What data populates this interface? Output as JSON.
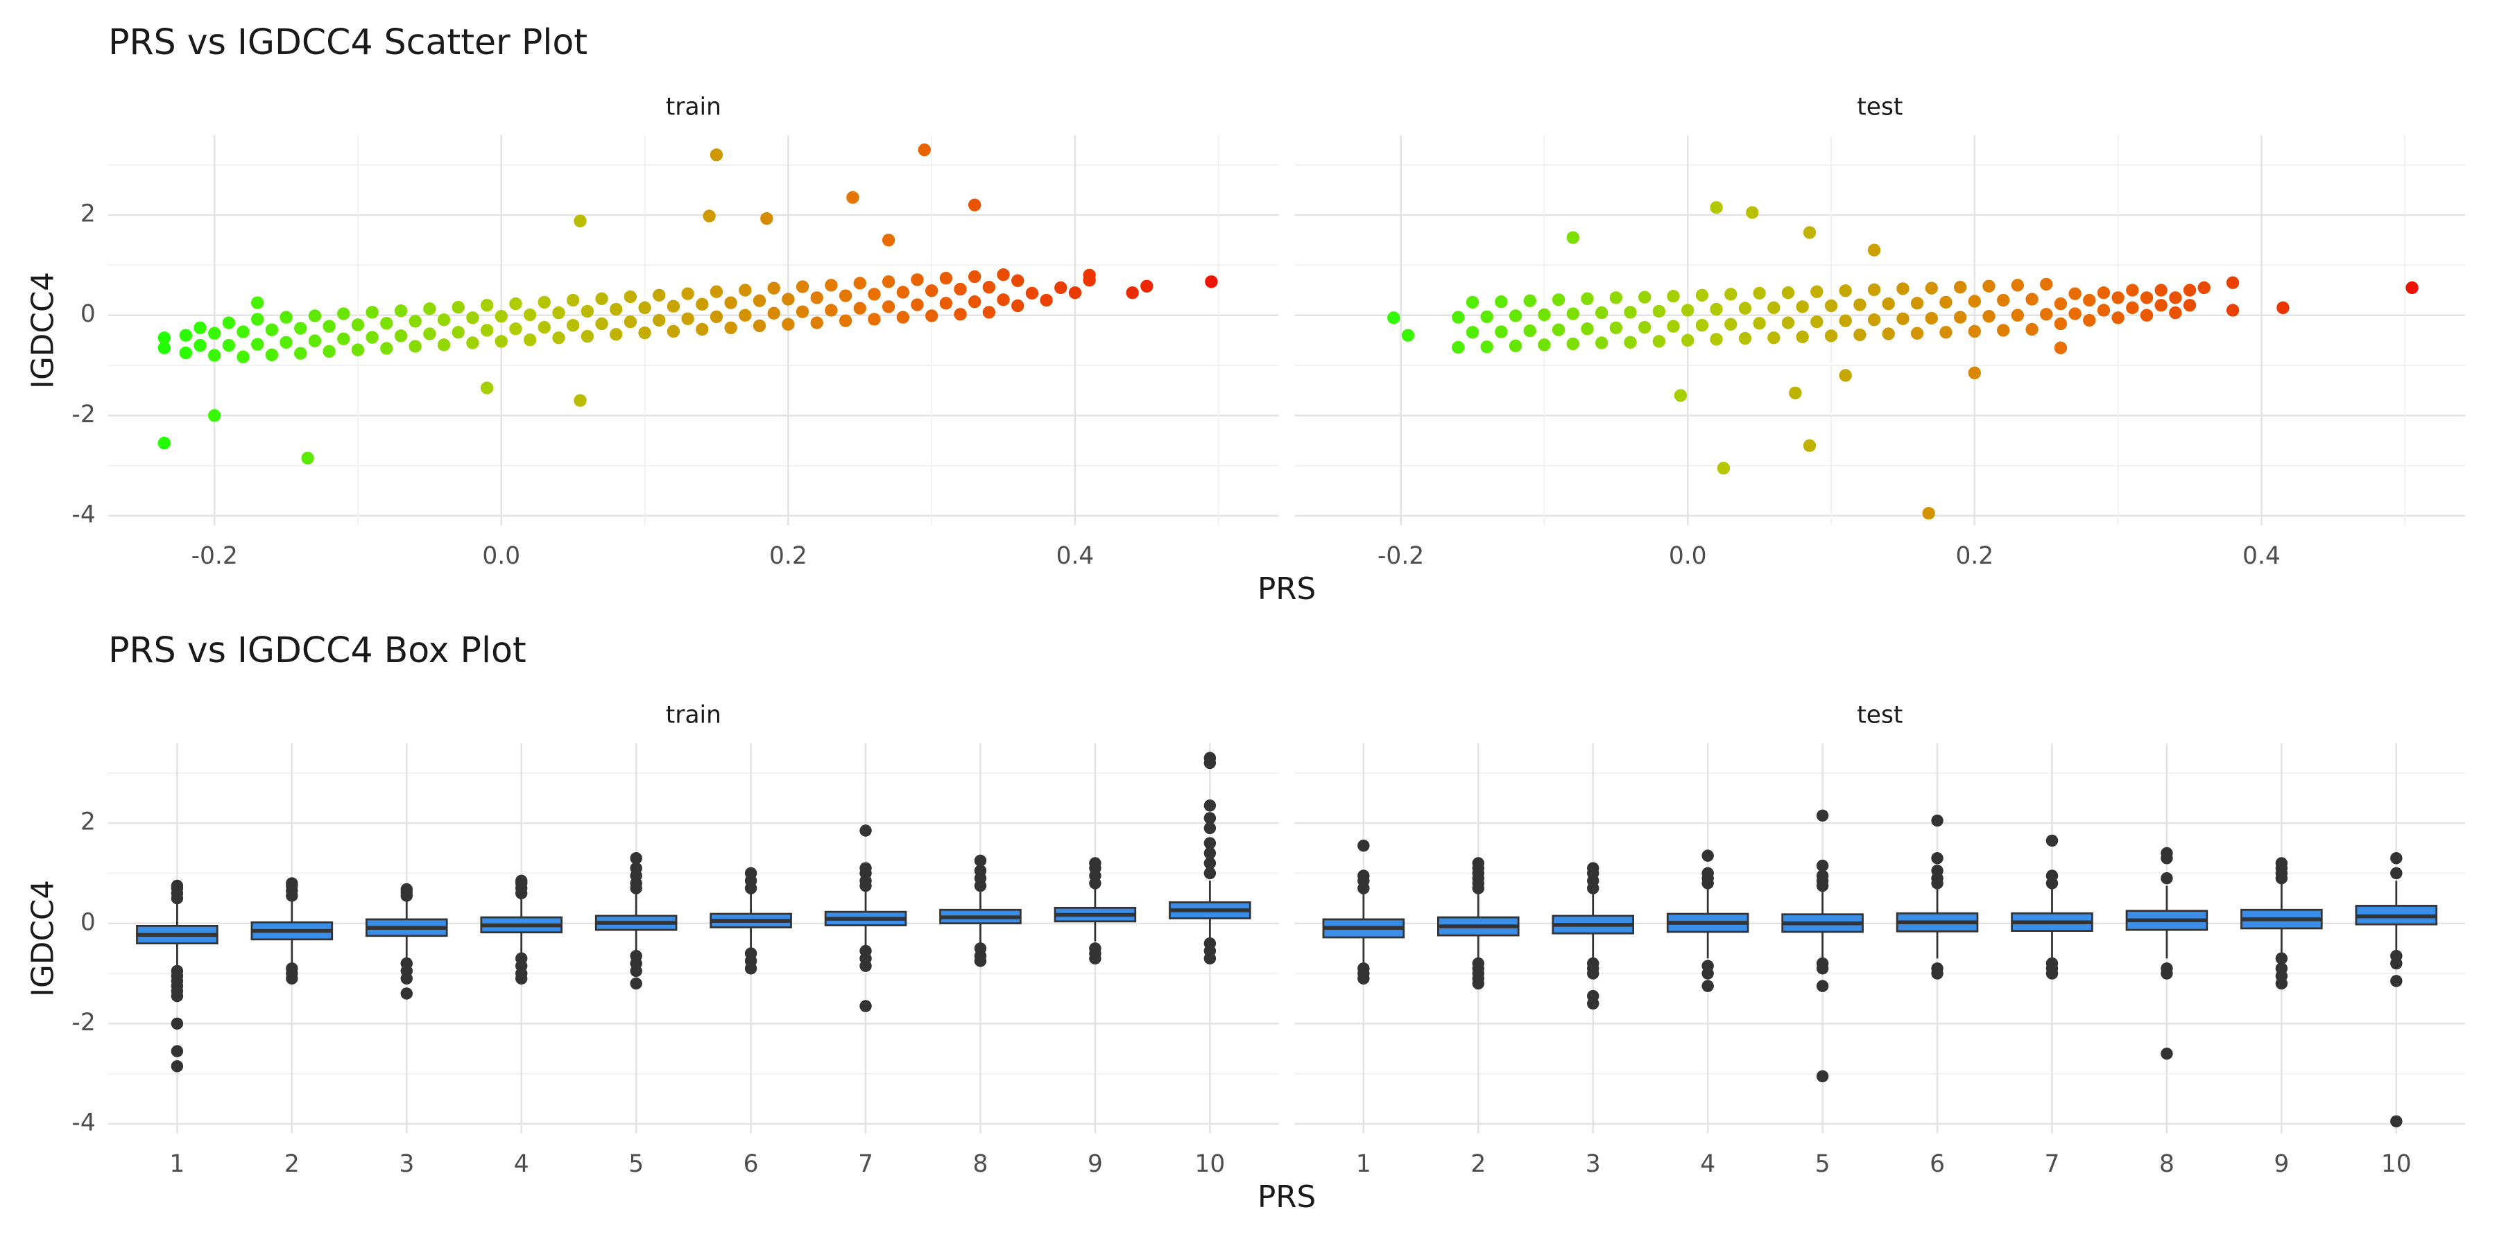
{
  "chart_data": [
    {
      "type": "scatter",
      "title": "PRS vs IGDCC4 Scatter Plot",
      "x_label": "PRS",
      "y_label": "IGDCC4",
      "xlim": [
        -0.274,
        0.542
      ],
      "xticks": [
        -0.2,
        {
          "value": 0,
          "label": "0.0"
        },
        0.2,
        0.4
      ],
      "xminor": [
        -0.1,
        0.1,
        0.3,
        0.5
      ],
      "ylim": [
        -4.19,
        3.59
      ],
      "yticks": [
        -4,
        -2,
        0,
        2
      ],
      "yminor": [
        -3,
        -1,
        1,
        3
      ],
      "grid": true,
      "color_gradient": [
        "#22ff00",
        "#b0cc00",
        "#e87000",
        "#ee1100"
      ],
      "panels": [
        {
          "name": "train",
          "x": [
            -0.22,
            -0.21,
            -0.22,
            -0.21,
            -0.2,
            -0.19,
            -0.2,
            -0.19,
            -0.18,
            -0.17,
            -0.18,
            -0.17,
            -0.16,
            -0.15,
            -0.16,
            -0.15,
            -0.14,
            -0.13,
            -0.14,
            -0.13,
            -0.12,
            -0.11,
            -0.12,
            -0.11,
            -0.1,
            -0.09,
            -0.1,
            -0.09,
            -0.08,
            -0.07,
            -0.08,
            -0.07,
            -0.06,
            -0.05,
            -0.06,
            -0.05,
            -0.04,
            -0.03,
            -0.04,
            -0.03,
            -0.02,
            -0.01,
            -0.02,
            -0.01,
            0,
            0.01,
            0,
            0.01,
            0.02,
            0.03,
            0.02,
            0.03,
            0.04,
            0.05,
            0.04,
            0.05,
            0.06,
            0.07,
            0.06,
            0.07,
            0.08,
            0.09,
            0.08,
            0.09,
            0.1,
            0.11,
            0.1,
            0.11,
            0.12,
            0.13,
            0.12,
            0.13,
            0.14,
            0.15,
            0.14,
            0.15,
            0.16,
            0.17,
            0.16,
            0.17,
            0.18,
            0.19,
            0.18,
            0.19,
            0.2,
            0.21,
            0.2,
            0.21,
            0.22,
            0.23,
            0.22,
            0.23,
            0.24,
            0.25,
            0.24,
            0.25,
            0.26,
            0.27,
            0.26,
            0.27,
            0.28,
            0.29,
            0.28,
            0.29,
            0.3,
            0.31,
            0.3,
            0.31,
            0.32,
            0.33,
            0.32,
            0.33,
            0.34,
            0.35,
            0.34,
            0.35,
            0.36,
            0.37,
            0.36,
            0.38,
            0.39,
            0.4,
            0.41,
            0.41,
            0.44,
            0.45,
            0.495,
            -0.235,
            -0.235,
            -0.235,
            -0.2,
            -0.135,
            0.15,
            0.295,
            0.33,
            0.245,
            0.145,
            0.185,
            0.055,
            0.055,
            -0.01,
            0.27,
            -0.17
          ],
          "y": [
            -0.75,
            -0.6,
            -0.4,
            -0.25,
            -0.8,
            -0.6,
            -0.36,
            -0.15,
            -0.83,
            -0.58,
            -0.33,
            -0.08,
            -0.79,
            -0.54,
            -0.29,
            -0.04,
            -0.76,
            -0.51,
            -0.26,
            -0.01,
            -0.72,
            -0.47,
            -0.22,
            0.03,
            -0.69,
            -0.44,
            -0.19,
            0.06,
            -0.66,
            -0.41,
            -0.16,
            0.09,
            -0.62,
            -0.37,
            -0.12,
            0.13,
            -0.59,
            -0.34,
            -0.09,
            0.16,
            -0.55,
            -0.3,
            -0.05,
            0.2,
            -0.52,
            -0.27,
            -0.02,
            0.23,
            -0.49,
            -0.24,
            0.01,
            0.26,
            -0.45,
            -0.2,
            0.05,
            0.3,
            -0.42,
            -0.17,
            0.08,
            0.33,
            -0.38,
            -0.13,
            0.12,
            0.37,
            -0.35,
            -0.1,
            0.15,
            0.4,
            -0.32,
            -0.07,
            0.18,
            0.43,
            -0.28,
            -0.03,
            0.22,
            0.47,
            -0.25,
            0,
            0.25,
            0.5,
            -0.21,
            0.04,
            0.29,
            0.54,
            -0.18,
            0.07,
            0.32,
            0.57,
            -0.15,
            0.1,
            0.35,
            0.6,
            -0.11,
            0.14,
            0.39,
            0.64,
            -0.08,
            0.17,
            0.42,
            0.67,
            -0.04,
            0.21,
            0.46,
            0.71,
            -0.01,
            0.24,
            0.49,
            0.74,
            0.02,
            0.27,
            0.52,
            0.77,
            0.06,
            0.31,
            0.56,
            0.81,
            0.19,
            0.44,
            0.69,
            0.3,
            0.55,
            0.45,
            0.7,
            0.8,
            0.45,
            0.58,
            0.67,
            -0.45,
            -0.65,
            -2.55,
            -2.0,
            -2.85,
            3.2,
            3.3,
            2.2,
            2.35,
            1.98,
            1.93,
            1.88,
            -1.7,
            -1.45,
            1.5,
            0.25
          ]
        },
        {
          "name": "test",
          "x": [
            -0.16,
            -0.15,
            -0.16,
            -0.15,
            -0.14,
            -0.13,
            -0.14,
            -0.13,
            -0.12,
            -0.11,
            -0.12,
            -0.11,
            -0.1,
            -0.09,
            -0.1,
            -0.09,
            -0.08,
            -0.07,
            -0.08,
            -0.07,
            -0.06,
            -0.05,
            -0.06,
            -0.05,
            -0.04,
            -0.03,
            -0.04,
            -0.03,
            -0.02,
            -0.01,
            -0.02,
            -0.01,
            0,
            0.01,
            0,
            0.01,
            0.02,
            0.03,
            0.02,
            0.03,
            0.04,
            0.05,
            0.04,
            0.05,
            0.06,
            0.07,
            0.06,
            0.07,
            0.08,
            0.09,
            0.08,
            0.09,
            0.1,
            0.11,
            0.1,
            0.11,
            0.12,
            0.13,
            0.12,
            0.13,
            0.14,
            0.15,
            0.14,
            0.15,
            0.16,
            0.17,
            0.16,
            0.17,
            0.18,
            0.19,
            0.18,
            0.19,
            0.2,
            0.21,
            0.2,
            0.21,
            0.22,
            0.23,
            0.22,
            0.23,
            0.24,
            0.25,
            0.24,
            0.25,
            0.26,
            0.27,
            0.26,
            0.27,
            0.28,
            0.29,
            0.28,
            0.29,
            0.3,
            0.31,
            0.3,
            0.31,
            0.32,
            0.33,
            0.32,
            0.33,
            0.34,
            0.35,
            0.34,
            0.35,
            -0.205,
            -0.195,
            -0.08,
            0.02,
            0.045,
            0.085,
            0.13,
            0.025,
            0.085,
            0.168,
            -0.005,
            0.075,
            0.2,
            0.38,
            0.38,
            0.415,
            0.505,
            0.36,
            0.26,
            0.11
          ],
          "y": [
            -0.64,
            -0.34,
            -0.04,
            0.26,
            -0.63,
            -0.33,
            -0.03,
            0.27,
            -0.61,
            -0.31,
            -0.01,
            0.29,
            -0.59,
            -0.29,
            0.01,
            0.31,
            -0.57,
            -0.27,
            0.03,
            0.33,
            -0.55,
            -0.25,
            0.05,
            0.35,
            -0.54,
            -0.24,
            0.06,
            0.36,
            -0.52,
            -0.22,
            0.08,
            0.38,
            -0.5,
            -0.2,
            0.1,
            0.4,
            -0.48,
            -0.18,
            0.12,
            0.42,
            -0.46,
            -0.16,
            0.14,
            0.44,
            -0.45,
            -0.15,
            0.15,
            0.45,
            -0.43,
            -0.13,
            0.17,
            0.47,
            -0.41,
            -0.11,
            0.19,
            0.49,
            -0.39,
            -0.09,
            0.21,
            0.51,
            -0.37,
            -0.07,
            0.23,
            0.53,
            -0.36,
            -0.06,
            0.24,
            0.54,
            -0.34,
            -0.04,
            0.26,
            0.56,
            -0.32,
            -0.02,
            0.28,
            0.58,
            -0.3,
            0,
            0.3,
            0.6,
            -0.28,
            0.02,
            0.32,
            0.62,
            -0.17,
            0.03,
            0.23,
            0.43,
            -0.1,
            0.1,
            0.3,
            0.45,
            -0.05,
            0.15,
            0.35,
            0.5,
            0.0,
            0.2,
            0.35,
            0.5,
            0.05,
            0.2,
            0.35,
            0.5,
            -0.05,
            -0.4,
            1.55,
            2.15,
            2.05,
            1.65,
            1.3,
            -3.05,
            -2.6,
            -3.95,
            -1.6,
            -1.55,
            -1.15,
            0.65,
            0.1,
            0.15,
            0.55,
            0.55,
            -0.65,
            -1.2
          ]
        }
      ]
    },
    {
      "type": "box",
      "title": "PRS vs IGDCC4 Box Plot",
      "x_label": "PRS",
      "y_label": "IGDCC4",
      "categories": [
        "1",
        "2",
        "3",
        "4",
        "5",
        "6",
        "7",
        "8",
        "9",
        "10"
      ],
      "ylim": [
        -4.19,
        3.59
      ],
      "yticks": [
        -4,
        -2,
        0,
        2
      ],
      "yminor": [
        -3,
        -1,
        1,
        3
      ],
      "grid": true,
      "box_color": "#3a8ee8",
      "line_color": "#333333",
      "panels": [
        {
          "name": "train",
          "q1": [
            -0.4,
            -0.32,
            -0.25,
            -0.18,
            -0.13,
            -0.08,
            -0.04,
            0.0,
            0.04,
            0.1
          ],
          "median": [
            -0.23,
            -0.15,
            -0.09,
            -0.04,
            0.01,
            0.05,
            0.09,
            0.12,
            0.17,
            0.26
          ],
          "q3": [
            -0.05,
            0.02,
            0.08,
            0.12,
            0.15,
            0.19,
            0.23,
            0.27,
            0.31,
            0.42
          ],
          "whisker_low": [
            -0.9,
            -0.82,
            -0.75,
            -0.63,
            -0.55,
            -0.48,
            -0.46,
            -0.4,
            -0.36,
            -0.35
          ],
          "whisker_high": [
            0.45,
            0.5,
            0.5,
            0.55,
            0.6,
            0.62,
            0.65,
            0.65,
            0.7,
            0.85
          ],
          "outliers": [
            [
              0.5,
              0.6,
              0.7,
              0.75,
              -0.95,
              -1.05,
              -1.15,
              -1.25,
              -1.35,
              -1.45,
              -2.0,
              -2.55,
              -2.85
            ],
            [
              0.55,
              0.65,
              0.75,
              0.8,
              -0.9,
              -1.0,
              -1.1
            ],
            [
              0.55,
              0.62,
              0.68,
              -0.8,
              -0.95,
              -1.1,
              -1.4
            ],
            [
              0.6,
              0.7,
              0.8,
              0.85,
              -0.7,
              -0.85,
              -1.0,
              -1.1
            ],
            [
              0.7,
              0.8,
              0.95,
              1.1,
              1.3,
              -0.65,
              -0.8,
              -0.95,
              -1.2
            ],
            [
              0.7,
              0.85,
              1.0,
              -0.6,
              -0.75,
              -0.9
            ],
            [
              0.75,
              0.85,
              1.0,
              1.1,
              1.85,
              -0.55,
              -0.7,
              -0.85,
              -1.65
            ],
            [
              0.75,
              0.9,
              1.05,
              1.25,
              -0.5,
              -0.65,
              -0.75
            ],
            [
              0.8,
              0.95,
              1.1,
              1.2,
              -0.5,
              -0.6,
              -0.7
            ],
            [
              1.0,
              1.2,
              1.4,
              1.6,
              1.9,
              2.1,
              2.35,
              3.2,
              3.3,
              -0.4,
              -0.55,
              -0.7
            ]
          ]
        },
        {
          "name": "test",
          "q1": [
            -0.28,
            -0.24,
            -0.2,
            -0.17,
            -0.17,
            -0.16,
            -0.15,
            -0.13,
            -0.1,
            -0.02
          ],
          "median": [
            -0.09,
            -0.06,
            -0.03,
            0.01,
            0.0,
            0.02,
            0.02,
            0.06,
            0.08,
            0.14
          ],
          "q3": [
            0.08,
            0.12,
            0.15,
            0.19,
            0.18,
            0.2,
            0.2,
            0.25,
            0.27,
            0.35
          ],
          "whisker_low": [
            -0.8,
            -0.75,
            -0.72,
            -0.7,
            -0.7,
            -0.7,
            -0.7,
            -0.7,
            -0.65,
            -0.55
          ],
          "whisker_high": [
            0.6,
            0.62,
            0.65,
            0.7,
            0.7,
            0.72,
            0.7,
            0.75,
            0.8,
            0.85
          ],
          "outliers": [
            [
              0.7,
              0.85,
              0.95,
              1.55,
              -0.9,
              -1.0,
              -1.1
            ],
            [
              0.7,
              0.8,
              0.9,
              1.0,
              1.1,
              1.2,
              -0.8,
              -0.9,
              -1.0,
              -1.1,
              -1.2
            ],
            [
              0.7,
              0.85,
              1.0,
              1.1,
              -0.8,
              -0.9,
              -1.0,
              -1.45,
              -1.6
            ],
            [
              0.8,
              0.9,
              1.0,
              1.35,
              -0.85,
              -1.0,
              -1.25
            ],
            [
              0.75,
              0.85,
              0.95,
              1.15,
              2.15,
              -0.8,
              -0.9,
              -1.25,
              -3.05
            ],
            [
              0.8,
              0.9,
              1.05,
              1.3,
              2.05,
              -0.9,
              -1.0
            ],
            [
              0.8,
              0.95,
              1.65,
              -0.8,
              -0.9,
              -1.0
            ],
            [
              0.9,
              1.3,
              1.4,
              -0.9,
              -1.0,
              -2.6
            ],
            [
              0.9,
              1.0,
              1.1,
              1.2,
              -0.7,
              -0.9,
              -1.05,
              -1.2
            ],
            [
              1.0,
              1.3,
              -0.65,
              -0.8,
              -1.15,
              -3.95
            ]
          ]
        }
      ]
    }
  ]
}
